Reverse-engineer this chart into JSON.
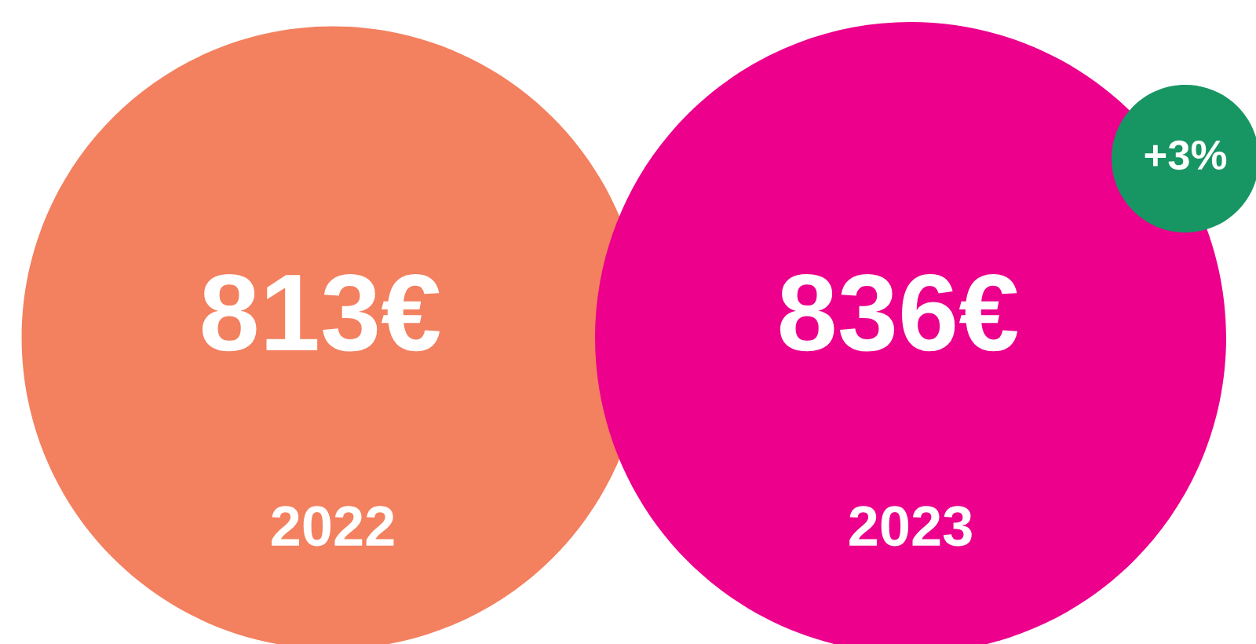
{
  "chart_data": {
    "type": "other",
    "categories": [
      "2022",
      "2023"
    ],
    "values": [
      813,
      836
    ],
    "value_labels": [
      "813€",
      "836€"
    ],
    "colors": [
      "#f3805f",
      "#ec008c"
    ],
    "annotations": [
      "+3%"
    ]
  }
}
